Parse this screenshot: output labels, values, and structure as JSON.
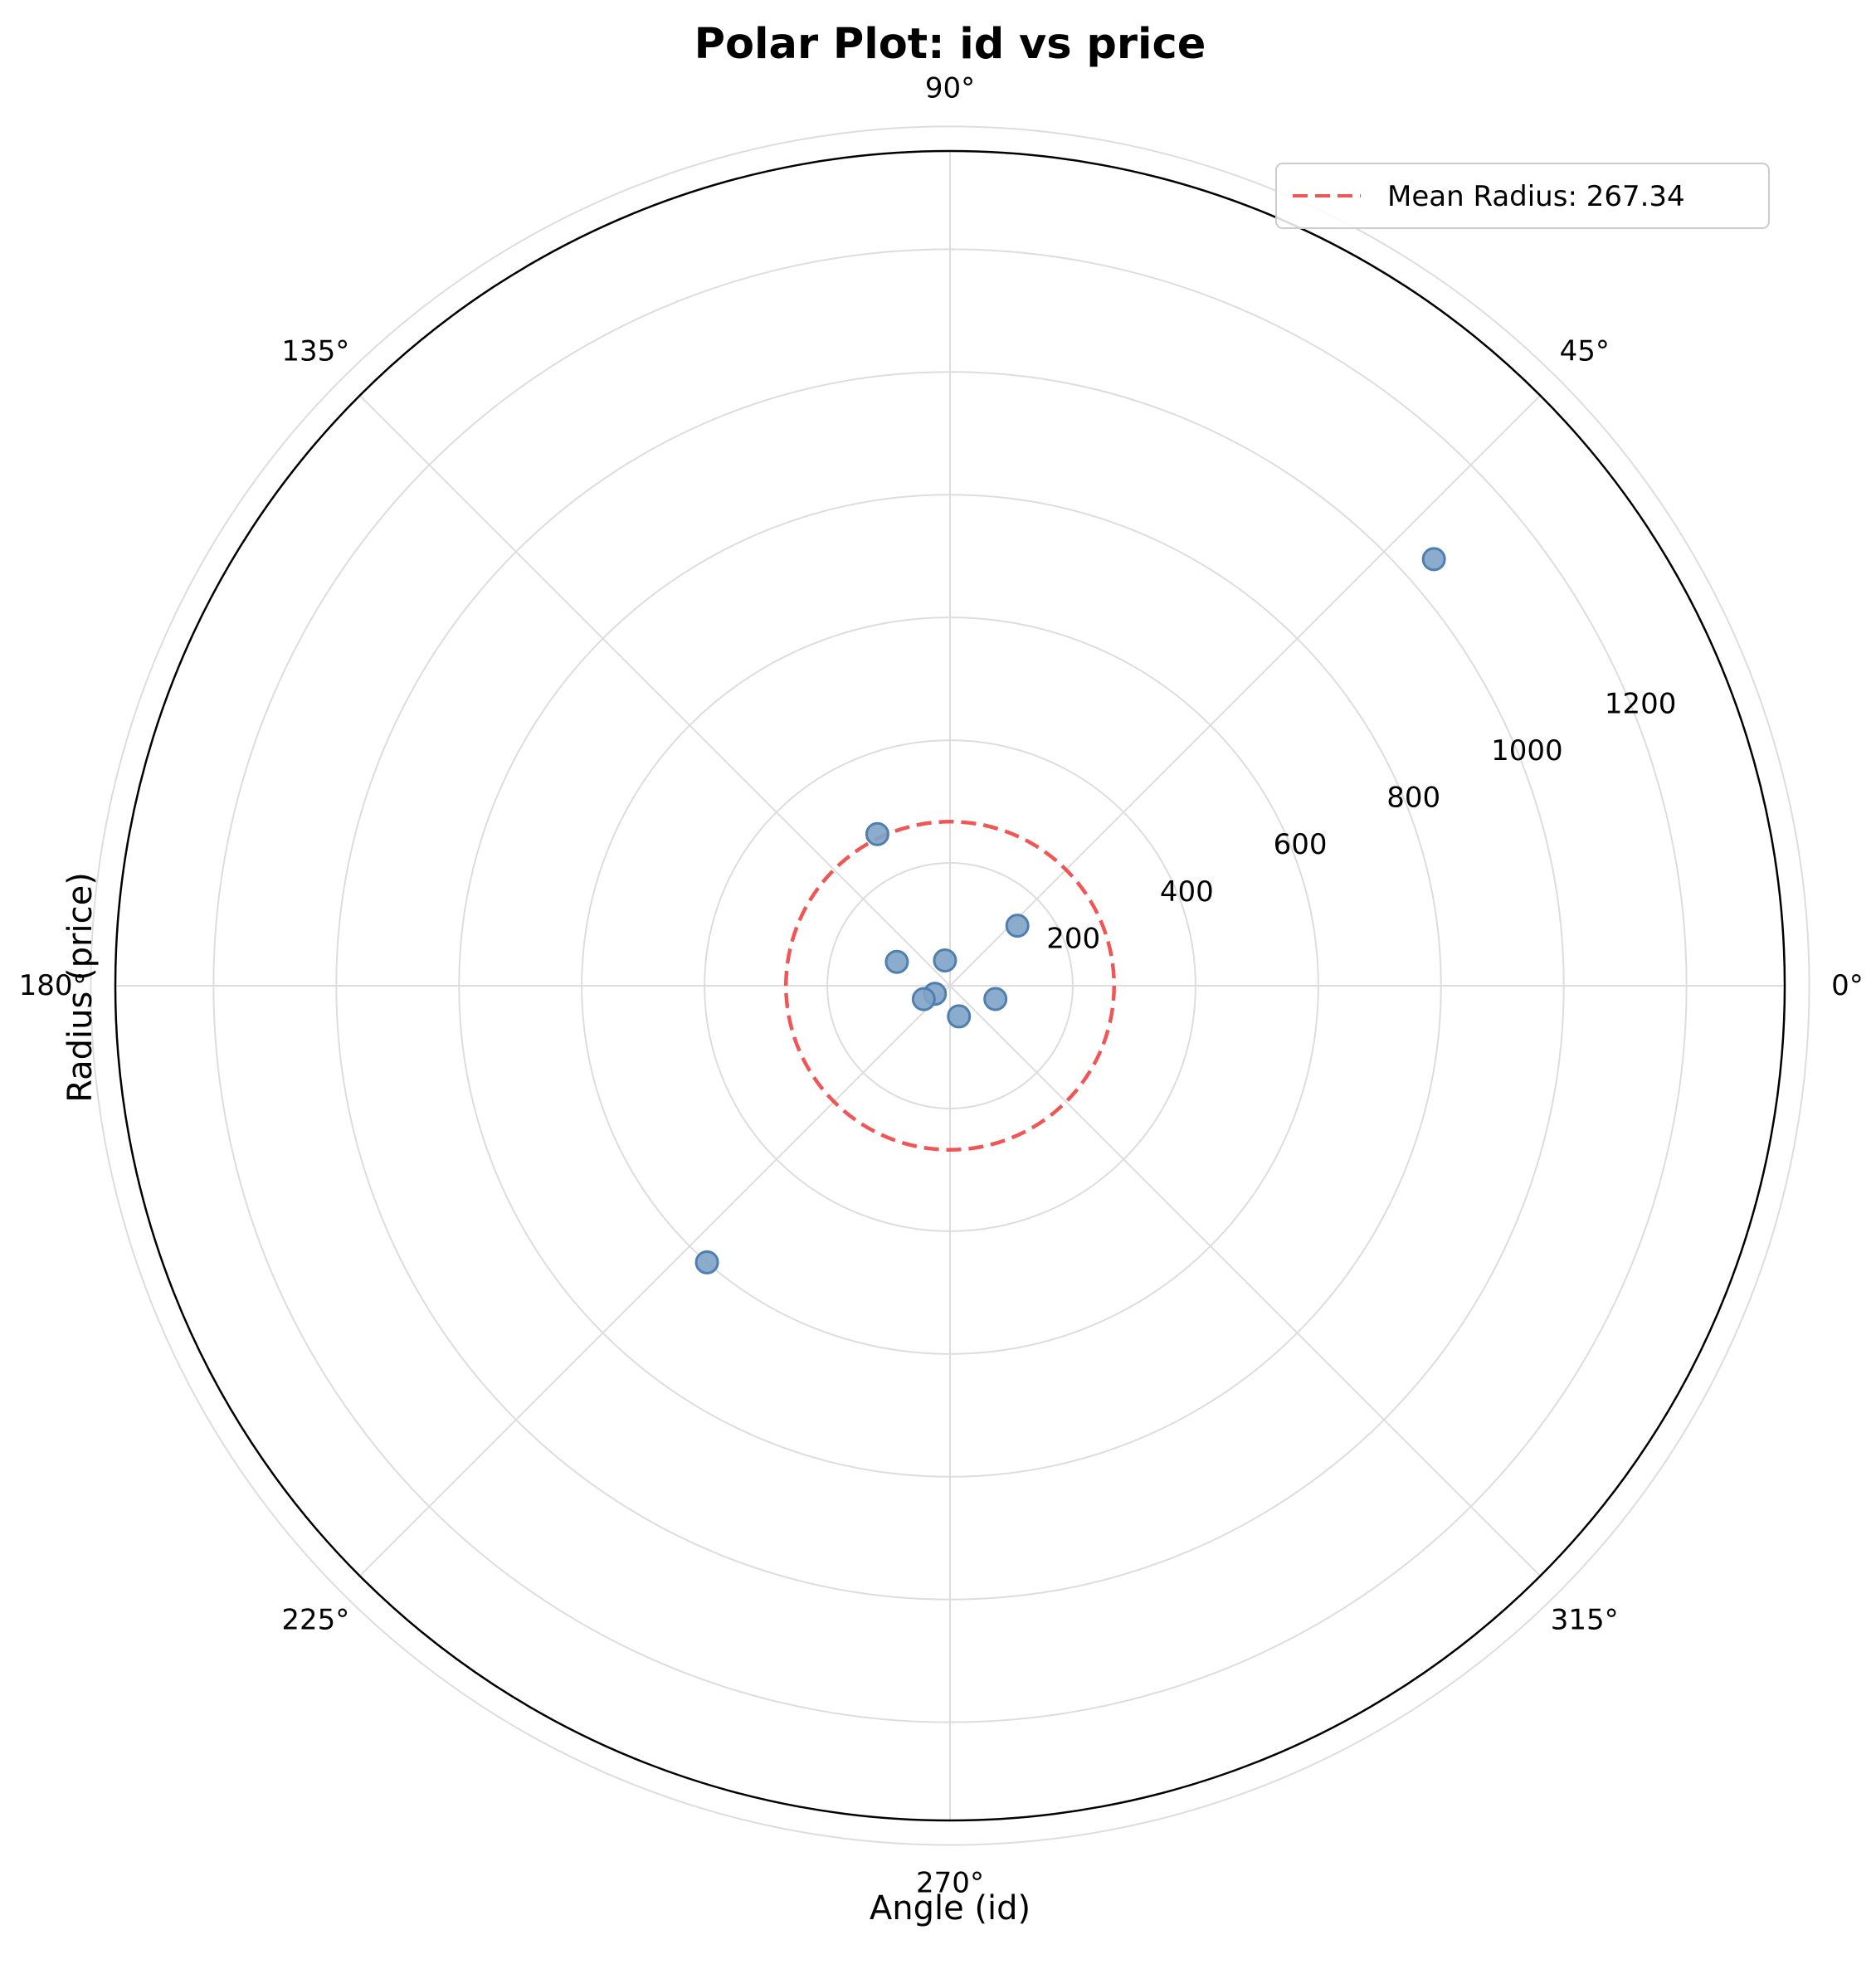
{
  "chart_data": {
    "type": "scatter",
    "projection": "polar",
    "title": "Polar Plot: id vs price",
    "xlabel": "Angle (id)",
    "ylabel": "Radius (price)",
    "theta_unit": "degrees",
    "theta_ticks": [
      {
        "value": 0,
        "label": "0°"
      },
      {
        "value": 45,
        "label": "45°"
      },
      {
        "value": 90,
        "label": "90°"
      },
      {
        "value": 135,
        "label": "135°"
      },
      {
        "value": 180,
        "label": "180°"
      },
      {
        "value": 225,
        "label": "225°"
      },
      {
        "value": 270,
        "label": "270°"
      },
      {
        "value": 315,
        "label": "315°"
      }
    ],
    "r_grid": [
      200,
      400,
      600,
      800,
      1000,
      1200,
      1400
    ],
    "r_ticks": [
      {
        "value": 200,
        "label": "200"
      },
      {
        "value": 400,
        "label": "400"
      },
      {
        "value": 600,
        "label": "600"
      },
      {
        "value": 800,
        "label": "800"
      },
      {
        "value": 1000,
        "label": "1000"
      },
      {
        "value": 1200,
        "label": "1200"
      }
    ],
    "r_label_angle": 22.5,
    "rlim": [
      0,
      1360
    ],
    "grid": true,
    "legend": {
      "placement": "top-right",
      "entries": [
        {
          "label": "Mean Radius: 267.34",
          "style": "dashed",
          "color": "#ef4444"
        }
      ]
    },
    "points": [
      {
        "theta": 41.4,
        "r": 1051
      },
      {
        "theta": 41.7,
        "r": 147
      },
      {
        "theta": 115.6,
        "r": 274
      },
      {
        "theta": 155.8,
        "r": 95
      },
      {
        "theta": 101.3,
        "r": 42
      },
      {
        "theta": 208.1,
        "r": 28
      },
      {
        "theta": 207.0,
        "r": 48
      },
      {
        "theta": 286.2,
        "r": 52
      },
      {
        "theta": 343.7,
        "r": 77
      },
      {
        "theta": 228.7,
        "r": 600
      }
    ],
    "mean_radius": 267.34,
    "colors": {
      "points_fill": "#7fa3c8",
      "points_edge": "#4f7fae",
      "mean_line": "#ef4444",
      "grid": "#dddddd",
      "frame": "#000000"
    }
  }
}
